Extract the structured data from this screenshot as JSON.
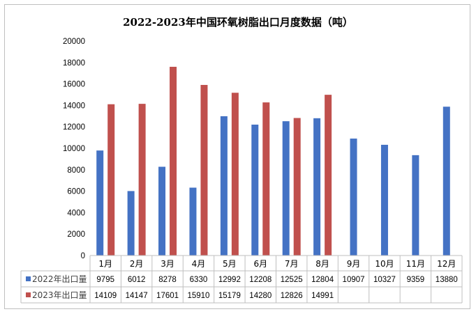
{
  "chart_data": {
    "type": "bar",
    "title": "2022-2023年中国环氧树脂出口月度数据（吨）",
    "categories": [
      "1月",
      "2月",
      "3月",
      "4月",
      "5月",
      "6月",
      "7月",
      "8月",
      "9月",
      "10月",
      "11月",
      "12月"
    ],
    "series": [
      {
        "name": "2022年出口量",
        "color": "#4472C4",
        "values": [
          9795,
          6012,
          8278,
          6330,
          12992,
          12208,
          12525,
          12804,
          10907,
          10327,
          9359,
          13880
        ]
      },
      {
        "name": "2023年出口量",
        "color": "#C0504D",
        "values": [
          14109,
          14147,
          17601,
          15910,
          15179,
          14280,
          12826,
          14991,
          null,
          null,
          null,
          null
        ]
      }
    ],
    "ylim": [
      0,
      20000
    ],
    "yticks": [
      "0",
      "2000",
      "4000",
      "6000",
      "8000",
      "10000",
      "12000",
      "14000",
      "16000",
      "18000",
      "20000"
    ],
    "data_table": true,
    "grid": false
  }
}
